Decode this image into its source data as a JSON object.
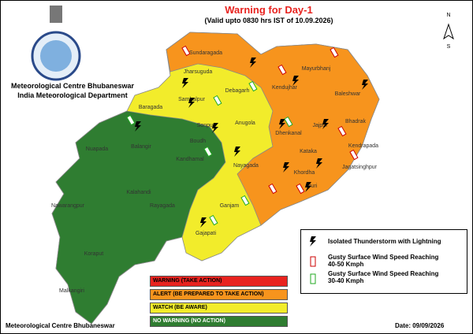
{
  "header": {
    "title": "Warning for Day-1",
    "subtitle": "(Valid upto 0830 hrs IST of 10.09.2026)"
  },
  "organization": {
    "line1": "Meteorological Centre Bhubaneswar",
    "line2": "India Meteorological Department"
  },
  "compass": {
    "north": "N",
    "south": "S"
  },
  "districts": [
    "Sundaragada",
    "Jharsuguda",
    "Sambalpur",
    "Debagarh",
    "Mayurbhanj",
    "Kendujhar",
    "Baleshwar",
    "Bhadrak",
    "Jajpur",
    "Kendrapada",
    "Jagatsinghpur",
    "Kataka",
    "Khordha",
    "Puri",
    "Nayagada",
    "Ganjam",
    "Gajapati",
    "Dhenkanal",
    "Anugola",
    "Baragada",
    "Sonpur",
    "Boudh",
    "Balangir",
    "Nuapada",
    "Kalahandi",
    "Kandhamal",
    "Rayagada",
    "Nawarangpur",
    "Koraput",
    "Malkangiri"
  ],
  "symbol_legend": [
    "Isolated Thunderstorm with Lightning",
    "Gusty Surface Wind Speed Reaching 40-50 Kmph",
    "Gusty Surface Wind Speed Reaching 30-40 Kmph"
  ],
  "warning_legend": [
    {
      "label": "WARNING (TAKE ACTION)",
      "color": "#e8231f"
    },
    {
      "label": "ALERT (BE PREPARED TO TAKE ACTION)",
      "color": "#f7941d"
    },
    {
      "label": "WATCH (BE AWARE)",
      "color": "#f2ec2b"
    },
    {
      "label": "NO WARNING (NO ACTION)",
      "color": "#2f7d31"
    }
  ],
  "footer": {
    "left": "Meteorological Centre Bhubaneswar",
    "right": "Date: 09/09/2026"
  }
}
